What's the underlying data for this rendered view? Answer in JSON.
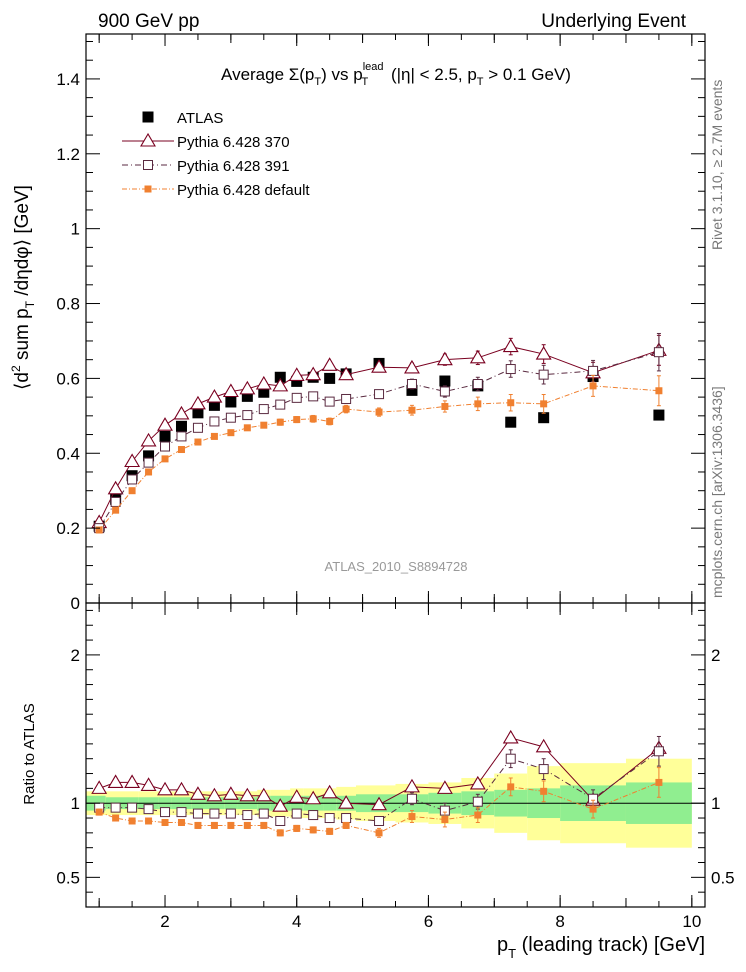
{
  "header": {
    "left": "900 GeV pp",
    "right": "Underlying Event"
  },
  "side_labels": {
    "right_top": "Rivet 3.1.10, ≥ 2.7M events",
    "right_bottom": "mcplots.cern.ch [arXiv:1306.3436]"
  },
  "watermark": "ATLAS_2010_S8894728",
  "colors": {
    "atlas": "#000000",
    "p370": "#7a0020",
    "p391": "#5a2a40",
    "pdefault": "#f08030",
    "band_green": "#90ee90",
    "band_yellow": "#ffff99"
  },
  "chart_data": [
    {
      "type": "scatter",
      "title": "Average Σ(p_T) vs p_T^lead (|η| < 2.5, p_T > 0.1 GeV)",
      "ylabel": "⟨d² sum p_T /dηdφ⟩ [GeV]",
      "xlim": [
        0.8,
        10.2
      ],
      "ylim": [
        0,
        1.52
      ],
      "yticks": [
        0.2,
        0.4,
        0.6,
        0.8,
        1,
        1.2,
        1.4
      ],
      "legend_position": "top-left",
      "x": [
        1.0,
        1.25,
        1.5,
        1.75,
        2.0,
        2.25,
        2.5,
        2.75,
        3.0,
        3.25,
        3.5,
        3.75,
        4.0,
        4.25,
        4.5,
        4.75,
        5.25,
        5.75,
        6.25,
        6.75,
        7.25,
        7.75,
        8.5,
        9.5
      ],
      "series": [
        {
          "name": "ATLAS",
          "marker": "filled-square",
          "values": [
            0.205,
            0.277,
            0.34,
            0.393,
            0.445,
            0.472,
            0.508,
            0.528,
            0.537,
            0.552,
            0.563,
            0.603,
            0.592,
            0.603,
            0.6,
            0.612,
            0.64,
            0.568,
            0.593,
            0.58,
            0.483,
            0.495,
            0.605,
            0.502
          ]
        },
        {
          "name": "Pythia 6.428 370",
          "marker": "open-triangle",
          "values": [
            0.215,
            0.305,
            0.378,
            0.433,
            0.475,
            0.505,
            0.532,
            0.55,
            0.565,
            0.572,
            0.585,
            0.58,
            0.608,
            0.61,
            0.635,
            0.61,
            0.63,
            0.628,
            0.65,
            0.655,
            0.685,
            0.665,
            0.615,
            0.675
          ],
          "errors": [
            0.004,
            0.004,
            0.004,
            0.005,
            0.005,
            0.005,
            0.006,
            0.006,
            0.006,
            0.007,
            0.007,
            0.008,
            0.008,
            0.009,
            0.009,
            0.01,
            0.011,
            0.013,
            0.015,
            0.018,
            0.022,
            0.025,
            0.028,
            0.04
          ]
        },
        {
          "name": "Pythia 6.428 391",
          "marker": "open-square",
          "values": [
            0.2,
            0.27,
            0.33,
            0.375,
            0.418,
            0.445,
            0.468,
            0.485,
            0.495,
            0.502,
            0.518,
            0.53,
            0.548,
            0.552,
            0.538,
            0.545,
            0.558,
            0.585,
            0.565,
            0.585,
            0.625,
            0.61,
            0.62,
            0.67
          ],
          "errors": [
            0.004,
            0.004,
            0.004,
            0.005,
            0.005,
            0.005,
            0.006,
            0.006,
            0.006,
            0.007,
            0.007,
            0.008,
            0.008,
            0.009,
            0.009,
            0.01,
            0.011,
            0.013,
            0.015,
            0.018,
            0.022,
            0.025,
            0.028,
            0.05
          ]
        },
        {
          "name": "Pythia 6.428 default",
          "marker": "filled-small-square",
          "values": [
            0.195,
            0.248,
            0.3,
            0.35,
            0.385,
            0.41,
            0.43,
            0.445,
            0.455,
            0.468,
            0.475,
            0.483,
            0.49,
            0.492,
            0.485,
            0.518,
            0.51,
            0.515,
            0.525,
            0.532,
            0.535,
            0.532,
            0.58,
            0.567
          ],
          "errors": [
            0.004,
            0.004,
            0.004,
            0.005,
            0.005,
            0.005,
            0.006,
            0.006,
            0.006,
            0.007,
            0.007,
            0.008,
            0.008,
            0.009,
            0.009,
            0.01,
            0.011,
            0.013,
            0.015,
            0.018,
            0.022,
            0.025,
            0.028,
            0.04
          ]
        }
      ]
    },
    {
      "type": "scatter",
      "ylabel": "Ratio to ATLAS",
      "xlabel": "p_T (leading track) [GeV]",
      "xlim": [
        0.8,
        10.2
      ],
      "xticks": [
        2,
        4,
        6,
        8,
        10
      ],
      "ylim": [
        0.3,
        2.35
      ],
      "yticks": [
        0.5,
        1,
        2
      ],
      "x": [
        1.0,
        1.25,
        1.5,
        1.75,
        2.0,
        2.25,
        2.5,
        2.75,
        3.0,
        3.25,
        3.5,
        3.75,
        4.0,
        4.25,
        4.5,
        4.75,
        5.25,
        5.75,
        6.25,
        6.75,
        7.25,
        7.75,
        8.5,
        9.5
      ],
      "bands": {
        "edges": [
          0.8,
          1.1,
          1.4,
          1.6,
          1.9,
          2.1,
          2.4,
          2.6,
          2.9,
          3.1,
          3.4,
          3.6,
          3.9,
          4.1,
          4.4,
          4.6,
          4.9,
          5.5,
          6.0,
          6.5,
          7.0,
          7.5,
          8.0,
          9.0,
          10.0
        ],
        "green": [
          0.05,
          0.04,
          0.04,
          0.04,
          0.04,
          0.04,
          0.04,
          0.04,
          0.04,
          0.04,
          0.05,
          0.05,
          0.05,
          0.05,
          0.05,
          0.05,
          0.06,
          0.06,
          0.07,
          0.08,
          0.09,
          0.1,
          0.12,
          0.14
        ],
        "yellow": [
          0.08,
          0.08,
          0.08,
          0.08,
          0.08,
          0.08,
          0.08,
          0.08,
          0.08,
          0.08,
          0.09,
          0.09,
          0.1,
          0.1,
          0.1,
          0.11,
          0.12,
          0.13,
          0.14,
          0.17,
          0.2,
          0.25,
          0.27,
          0.3
        ]
      },
      "series": [
        {
          "name": "Pythia 6.428 370",
          "marker": "open-triangle",
          "values": [
            1.1,
            1.14,
            1.14,
            1.12,
            1.09,
            1.09,
            1.06,
            1.05,
            1.06,
            1.05,
            1.05,
            0.98,
            1.04,
            1.03,
            1.07,
            1.0,
            0.99,
            1.11,
            1.1,
            1.13,
            1.44,
            1.38,
            1.02,
            1.37
          ]
        },
        {
          "name": "Pythia 6.428 391",
          "marker": "open-square",
          "values": [
            0.97,
            0.97,
            0.97,
            0.96,
            0.94,
            0.94,
            0.93,
            0.93,
            0.93,
            0.92,
            0.93,
            0.88,
            0.93,
            0.92,
            0.9,
            0.9,
            0.88,
            1.03,
            0.95,
            1.01,
            1.3,
            1.23,
            1.03,
            1.35
          ],
          "errors": [
            0.02,
            0.02,
            0.02,
            0.02,
            0.02,
            0.02,
            0.02,
            0.02,
            0.02,
            0.02,
            0.02,
            0.02,
            0.02,
            0.02,
            0.02,
            0.02,
            0.03,
            0.04,
            0.05,
            0.05,
            0.06,
            0.07,
            0.06,
            0.1
          ]
        },
        {
          "name": "Pythia 6.428 default",
          "marker": "filled-small-square",
          "values": [
            0.94,
            0.9,
            0.88,
            0.88,
            0.87,
            0.87,
            0.85,
            0.85,
            0.85,
            0.85,
            0.85,
            0.8,
            0.83,
            0.82,
            0.81,
            0.85,
            0.8,
            0.91,
            0.89,
            0.92,
            1.11,
            1.08,
            0.96,
            1.14
          ],
          "errors": [
            0.02,
            0.02,
            0.02,
            0.02,
            0.02,
            0.02,
            0.02,
            0.02,
            0.02,
            0.02,
            0.02,
            0.02,
            0.02,
            0.02,
            0.02,
            0.02,
            0.03,
            0.04,
            0.05,
            0.05,
            0.06,
            0.07,
            0.06,
            0.1
          ]
        }
      ]
    }
  ]
}
